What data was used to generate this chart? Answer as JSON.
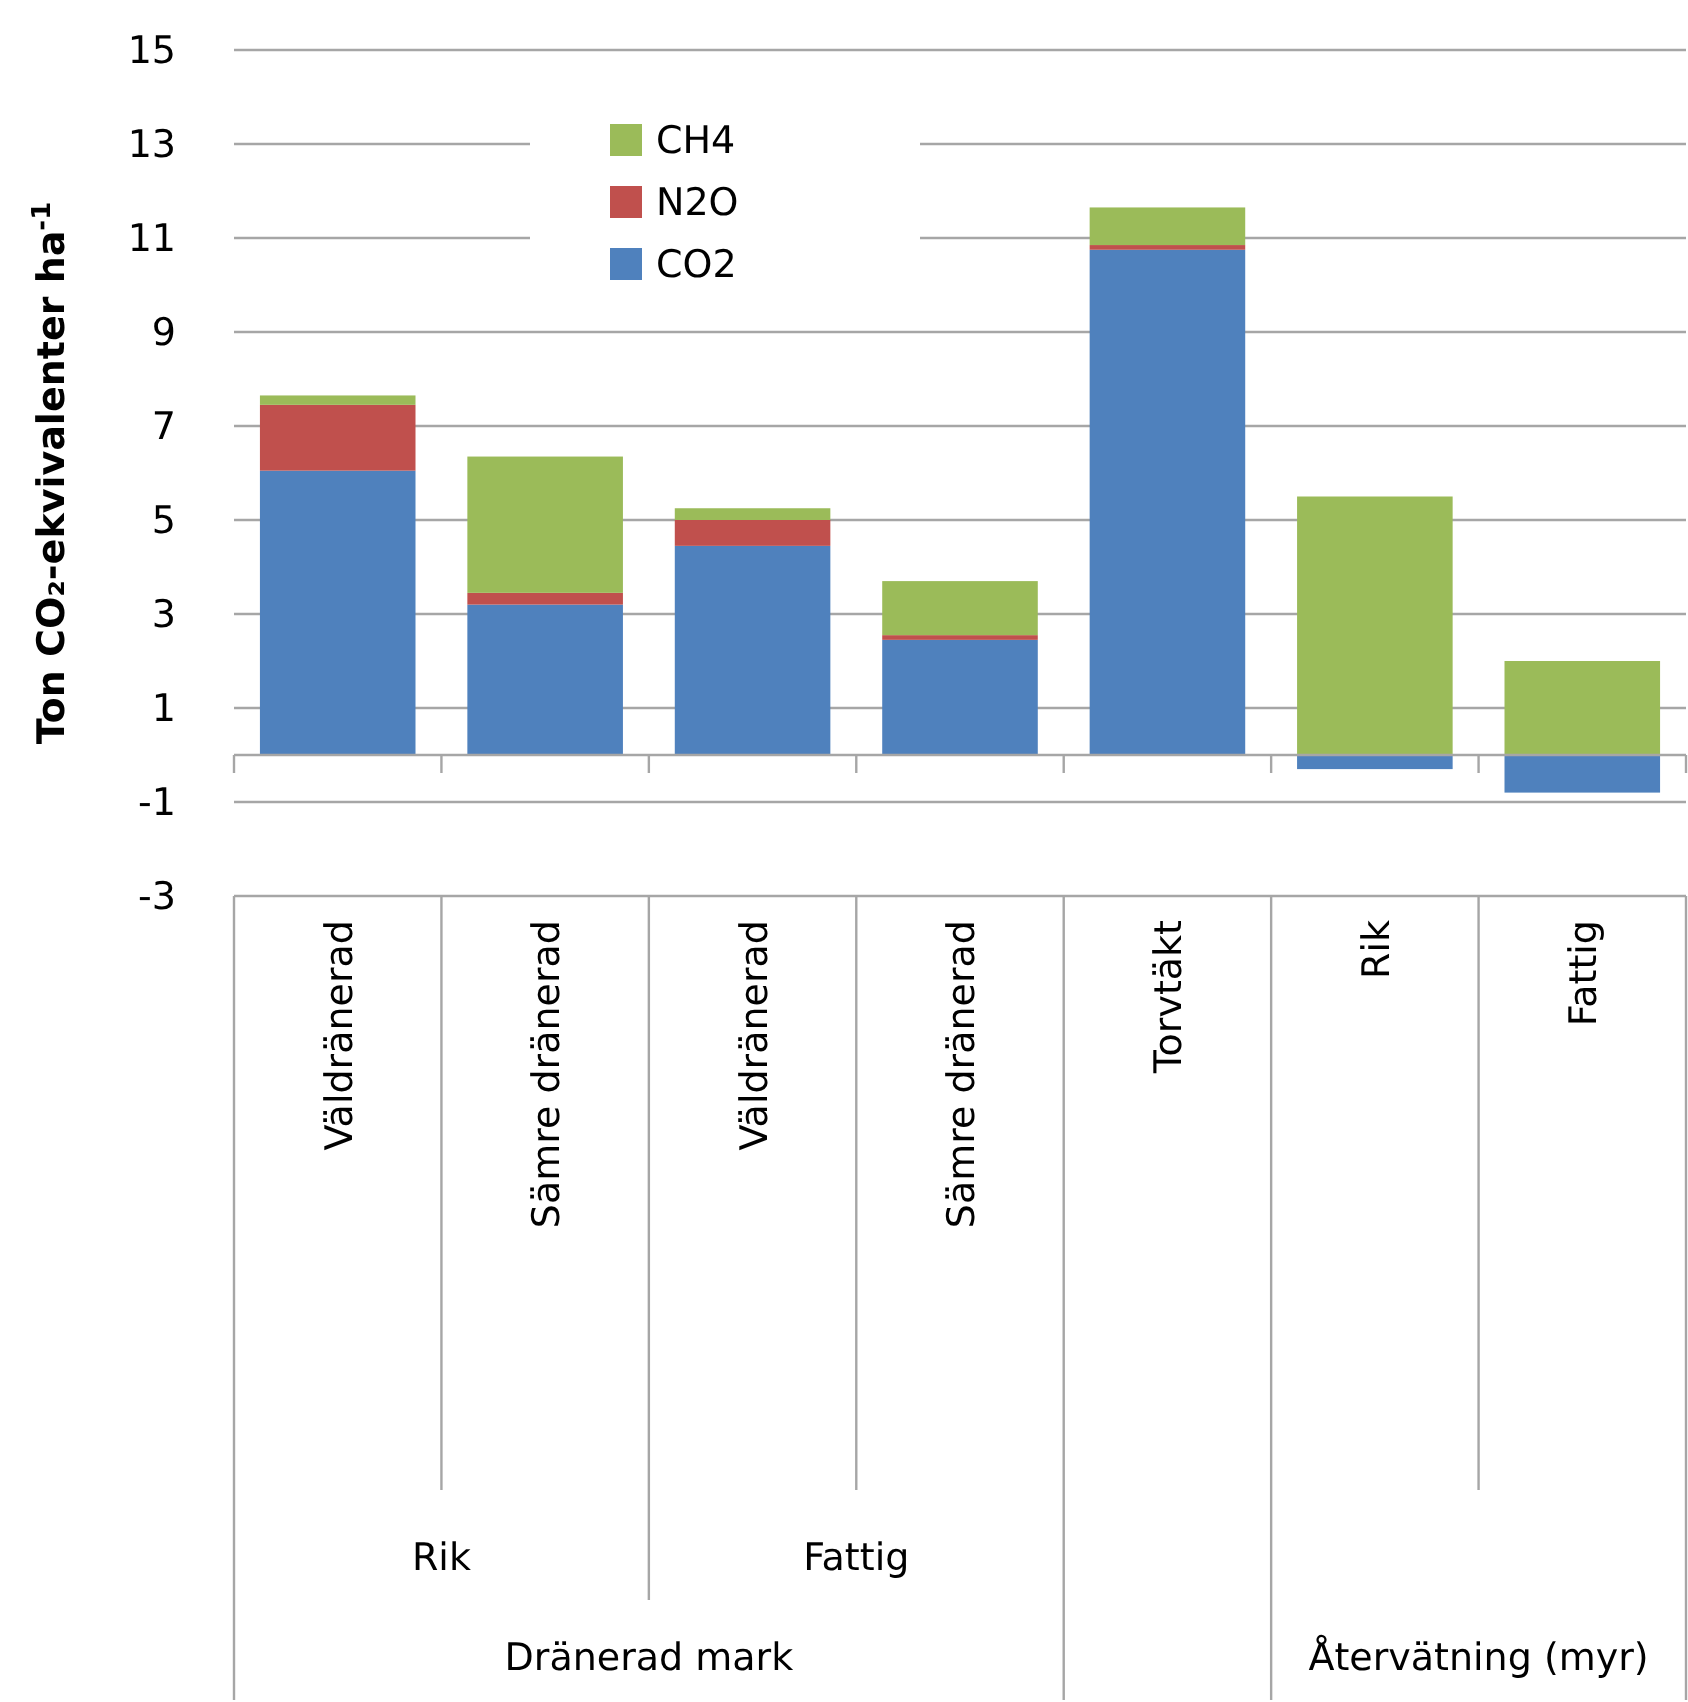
{
  "chart_data": {
    "type": "bar",
    "stacked": true,
    "categories": [
      "Väldränerad",
      "Sämre dränerad",
      "Väldränerad",
      "Sämre dränerad",
      "Torvtäkt",
      "Rik",
      "Fattig"
    ],
    "series": [
      {
        "name": "CO2",
        "color": "#4f81bd",
        "values": [
          6.05,
          3.2,
          4.45,
          2.45,
          10.75,
          -0.3,
          -0.8
        ]
      },
      {
        "name": "N2O",
        "color": "#c0504d",
        "values": [
          1.4,
          0.25,
          0.55,
          0.1,
          0.1,
          0,
          0
        ]
      },
      {
        "name": "CH4",
        "color": "#9bbb59",
        "values": [
          0.2,
          2.9,
          0.25,
          1.15,
          0.8,
          5.5,
          2.0
        ]
      }
    ],
    "ylabel": "Ton CO₂-ekvivalenter ha$^{-1}$",
    "ylim": [
      -3,
      15
    ],
    "yticks": [
      -3,
      -1,
      1,
      3,
      5,
      7,
      9,
      11,
      13,
      15
    ],
    "grid": "y",
    "legend": "top left",
    "annotations": [
      "Rik",
      "Fattig",
      "Dränerad mark",
      "Återvätning (myr)"
    ]
  }
}
